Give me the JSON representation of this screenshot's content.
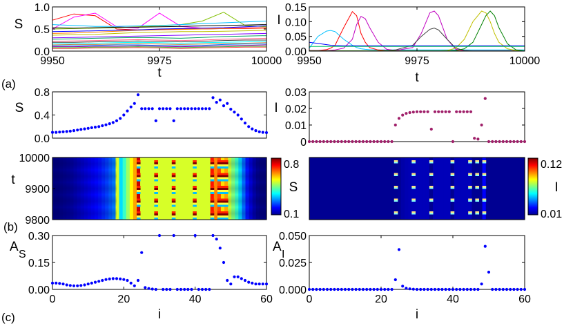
{
  "panel_labels": {
    "a": "(a)",
    "b": "(b)",
    "c": "(c)"
  },
  "chart_data": [
    {
      "id": "a_left",
      "type": "line",
      "xlabel": "t",
      "ylabel": "S",
      "xlim": [
        9950,
        10000
      ],
      "ylim": [
        0,
        1
      ],
      "xticks": [
        9950,
        9975,
        10000
      ],
      "yticks": [
        0,
        0.5,
        1
      ],
      "ytick_labels": [
        "0.0",
        "0.5",
        "1.0"
      ],
      "x": [
        9950,
        9955,
        9960,
        9965,
        9970,
        9975,
        9980,
        9985,
        9990,
        9995,
        10000
      ],
      "series": [
        {
          "color": "#ff0000",
          "values": [
            0.7,
            0.84,
            0.8,
            0.5,
            0.48,
            0.49,
            0.5,
            0.5,
            0.51,
            0.51,
            0.52
          ]
        },
        {
          "color": "#ff00ff",
          "values": [
            0.5,
            0.77,
            0.86,
            0.55,
            0.52,
            0.86,
            0.56,
            0.52,
            0.52,
            0.53,
            0.53
          ]
        },
        {
          "color": "#80c000",
          "values": [
            0.5,
            0.51,
            0.52,
            0.53,
            0.55,
            0.57,
            0.6,
            0.68,
            0.88,
            0.58,
            0.55
          ]
        },
        {
          "color": "#00c0ff",
          "values": [
            0.6,
            0.58,
            0.56,
            0.56,
            0.57,
            0.58,
            0.6,
            0.62,
            0.64,
            0.66,
            0.68
          ]
        },
        {
          "color": "#000000",
          "values": [
            0.53,
            0.52,
            0.53,
            0.54,
            0.54,
            0.55,
            0.56,
            0.57,
            0.58,
            0.59,
            0.6
          ]
        },
        {
          "color": "#ff8000",
          "values": [
            0.4,
            0.41,
            0.43,
            0.45,
            0.47,
            0.48,
            0.49,
            0.5,
            0.51,
            0.52,
            0.53
          ]
        },
        {
          "color": "#0000ff",
          "values": [
            0.44,
            0.45,
            0.46,
            0.47,
            0.48,
            0.5,
            0.51,
            0.52,
            0.53,
            0.55,
            0.57
          ]
        },
        {
          "color": "#c0c000",
          "values": [
            0.36,
            0.37,
            0.38,
            0.4,
            0.42,
            0.43,
            0.44,
            0.44,
            0.45,
            0.46,
            0.47
          ]
        },
        {
          "color": "#8000ff",
          "values": [
            0.3,
            0.31,
            0.32,
            0.33,
            0.34,
            0.35,
            0.36,
            0.37,
            0.38,
            0.39,
            0.4
          ]
        },
        {
          "color": "#00a060",
          "values": [
            0.27,
            0.28,
            0.29,
            0.3,
            0.31,
            0.3,
            0.29,
            0.31,
            0.33,
            0.34,
            0.35
          ]
        },
        {
          "color": "#ff6080",
          "values": [
            0.22,
            0.23,
            0.24,
            0.25,
            0.26,
            0.25,
            0.24,
            0.25,
            0.27,
            0.28,
            0.29
          ]
        },
        {
          "color": "#404040",
          "values": [
            0.2,
            0.2,
            0.21,
            0.22,
            0.23,
            0.22,
            0.21,
            0.22,
            0.24,
            0.25,
            0.25
          ]
        },
        {
          "color": "#00ffff",
          "values": [
            0.17,
            0.17,
            0.18,
            0.19,
            0.2,
            0.19,
            0.18,
            0.19,
            0.2,
            0.21,
            0.22
          ]
        },
        {
          "color": "#c08040",
          "values": [
            0.14,
            0.15,
            0.15,
            0.16,
            0.17,
            0.16,
            0.15,
            0.16,
            0.17,
            0.18,
            0.19
          ]
        },
        {
          "color": "#0080ff",
          "values": [
            0.12,
            0.12,
            0.13,
            0.14,
            0.14,
            0.13,
            0.12,
            0.13,
            0.15,
            0.16,
            0.16
          ]
        },
        {
          "color": "#a000a0",
          "values": [
            0.1,
            0.1,
            0.11,
            0.11,
            0.12,
            0.11,
            0.1,
            0.11,
            0.12,
            0.13,
            0.14
          ]
        },
        {
          "color": "#40c040",
          "values": [
            0.08,
            0.08,
            0.09,
            0.09,
            0.1,
            0.09,
            0.08,
            0.09,
            0.1,
            0.11,
            0.11
          ]
        },
        {
          "color": "#ff4040",
          "values": [
            0.06,
            0.06,
            0.07,
            0.07,
            0.08,
            0.07,
            0.06,
            0.07,
            0.08,
            0.09,
            0.09
          ]
        }
      ]
    },
    {
      "id": "a_right",
      "type": "line",
      "xlabel": "t",
      "ylabel": "I",
      "xlim": [
        9950,
        10000
      ],
      "ylim": [
        0,
        0.15
      ],
      "xticks": [
        9950,
        9975,
        10000
      ],
      "yticks": [
        0,
        0.05,
        0.1,
        0.15
      ],
      "ytick_labels": [
        "0.00",
        "0.05",
        "0.10",
        "0.15"
      ],
      "x": [
        9950,
        9952,
        9954,
        9955,
        9956,
        9958,
        9960,
        9961,
        9962,
        9963,
        9964,
        9966,
        9968,
        9970,
        9974,
        9976,
        9978,
        9979,
        9980,
        9982,
        9984,
        9986,
        9988,
        9990,
        9991,
        9992,
        9993,
        9994,
        9996,
        9998,
        10000
      ],
      "series": [
        {
          "color": "#00c0ff",
          "values": [
            0.01,
            0.05,
            0.068,
            0.07,
            0.066,
            0.04,
            0.02,
            0.012,
            0.008,
            0.006,
            0.005,
            0.004,
            0.004,
            0.004,
            0.004,
            0.004,
            0.004,
            0.004,
            0.004,
            0.004,
            0.004,
            0.004,
            0.004,
            0.004,
            0.004,
            0.004,
            0.004,
            0.004,
            0.004,
            0.004,
            0.004
          ]
        },
        {
          "color": "#ff0000",
          "values": [
            0.002,
            0.002,
            0.005,
            0.01,
            0.02,
            0.08,
            0.134,
            0.12,
            0.06,
            0.03,
            0.012,
            0.004,
            0.002,
            0.001,
            0.001,
            0.001,
            0.001,
            0.001,
            0.001,
            0.001,
            0.001,
            0.001,
            0.001,
            0.001,
            0.001,
            0.001,
            0.001,
            0.001,
            0.001,
            0.001,
            0.001
          ]
        },
        {
          "color": "#c000c0",
          "values": [
            0.002,
            0.002,
            0.002,
            0.003,
            0.004,
            0.01,
            0.04,
            0.09,
            0.118,
            0.11,
            0.08,
            0.03,
            0.006,
            0.002,
            0.012,
            0.06,
            0.13,
            0.136,
            0.12,
            0.04,
            0.006,
            0.002,
            0.001,
            0.001,
            0.001,
            0.001,
            0.001,
            0.001,
            0.001,
            0.001,
            0.001
          ]
        },
        {
          "color": "#404040",
          "values": [
            0.001,
            0.001,
            0.001,
            0.001,
            0.001,
            0.001,
            0.001,
            0.001,
            0.001,
            0.001,
            0.001,
            0.001,
            0.002,
            0.004,
            0.02,
            0.05,
            0.074,
            0.078,
            0.072,
            0.04,
            0.01,
            0.002,
            0.001,
            0.001,
            0.001,
            0.001,
            0.001,
            0.001,
            0.001,
            0.001,
            0.001
          ]
        },
        {
          "color": "#c0c000",
          "values": [
            0.001,
            0.001,
            0.001,
            0.001,
            0.001,
            0.001,
            0.001,
            0.001,
            0.001,
            0.001,
            0.001,
            0.001,
            0.001,
            0.001,
            0.001,
            0.001,
            0.001,
            0.001,
            0.001,
            0.002,
            0.01,
            0.04,
            0.1,
            0.136,
            0.13,
            0.1,
            0.06,
            0.03,
            0.008,
            0.002,
            0.001
          ]
        },
        {
          "color": "#008000",
          "values": [
            0.001,
            0.001,
            0.001,
            0.001,
            0.001,
            0.001,
            0.001,
            0.001,
            0.001,
            0.001,
            0.001,
            0.001,
            0.001,
            0.001,
            0.001,
            0.001,
            0.001,
            0.001,
            0.001,
            0.001,
            0.002,
            0.008,
            0.03,
            0.09,
            0.12,
            0.136,
            0.12,
            0.08,
            0.025,
            0.004,
            0.001
          ]
        },
        {
          "color": "#0000ff",
          "values": [
            0.03,
            0.026,
            0.022,
            0.02,
            0.019,
            0.018,
            0.018,
            0.018,
            0.018,
            0.018,
            0.018,
            0.018,
            0.018,
            0.018,
            0.018,
            0.018,
            0.018,
            0.018,
            0.018,
            0.018,
            0.018,
            0.018,
            0.018,
            0.018,
            0.018,
            0.018,
            0.018,
            0.018,
            0.018,
            0.018,
            0.018
          ]
        },
        {
          "color": "#00c060",
          "values": [
            0.016,
            0.016,
            0.016,
            0.016,
            0.016,
            0.016,
            0.016,
            0.016,
            0.016,
            0.016,
            0.016,
            0.016,
            0.016,
            0.016,
            0.016,
            0.016,
            0.016,
            0.016,
            0.016,
            0.016,
            0.016,
            0.016,
            0.016,
            0.016,
            0.016,
            0.016,
            0.016,
            0.016,
            0.016,
            0.016,
            0.016
          ]
        }
      ]
    },
    {
      "id": "b_left_profile",
      "type": "scatter",
      "ylabel": "S",
      "xlim": [
        0,
        60
      ],
      "ylim": [
        0,
        0.8
      ],
      "yticks": [
        0,
        0.4,
        0.8
      ],
      "ytick_labels": [
        "0.0",
        "0.4",
        "0.8"
      ],
      "marker_color": "#0000ff",
      "values": [
        0.1,
        0.1,
        0.105,
        0.11,
        0.115,
        0.12,
        0.13,
        0.14,
        0.15,
        0.16,
        0.17,
        0.18,
        0.19,
        0.2,
        0.215,
        0.23,
        0.25,
        0.27,
        0.3,
        0.34,
        0.4,
        0.47,
        0.54,
        0.6,
        0.75,
        0.51,
        0.51,
        0.51,
        0.51,
        0.3,
        0.51,
        0.51,
        0.51,
        0.51,
        0.3,
        0.51,
        0.51,
        0.51,
        0.51,
        0.51,
        0.51,
        0.51,
        0.51,
        0.51,
        0.51,
        0.7,
        0.62,
        0.66,
        0.56,
        0.6,
        0.5,
        0.45,
        0.4,
        0.33,
        0.26,
        0.2,
        0.16,
        0.13,
        0.11,
        0.1,
        0.095
      ]
    },
    {
      "id": "b_right_profile",
      "type": "scatter",
      "ylabel": "I",
      "xlim": [
        0,
        60
      ],
      "ylim": [
        0,
        0.03
      ],
      "yticks": [
        0,
        0.01,
        0.02,
        0.03
      ],
      "ytick_labels": [
        "0",
        "0.01",
        "0.02",
        "0.03"
      ],
      "marker_color": "#a0206a",
      "values": [
        0,
        0,
        0,
        0,
        0,
        0,
        0,
        0,
        0,
        0,
        0,
        0,
        0,
        0,
        0,
        0,
        0,
        0,
        0,
        0,
        0,
        0,
        0,
        0,
        0.01,
        0.014,
        0.016,
        0.017,
        0.0175,
        0.0178,
        0.018,
        0.018,
        0.018,
        0.018,
        0.0075,
        0.018,
        0.018,
        0.018,
        0.018,
        0.018,
        0.0,
        0.018,
        0.018,
        0.018,
        0.018,
        0.018,
        0.002,
        0.0015,
        0.01,
        0.026,
        0.0,
        0,
        0,
        0,
        0,
        0,
        0,
        0,
        0,
        0,
        0
      ]
    },
    {
      "id": "b_left_heatmap",
      "type": "heatmap",
      "ylabel": "t",
      "ylim": [
        9800,
        10000
      ],
      "yticks": [
        9800,
        9900,
        10000
      ],
      "colorbar_label": "S",
      "colorbar_ticks": [
        "0.8",
        "0.1"
      ]
    },
    {
      "id": "b_right_heatmap",
      "type": "heatmap",
      "colorbar_label": "I",
      "colorbar_ticks": [
        "0.12",
        "0.01"
      ]
    },
    {
      "id": "c_left",
      "type": "scatter",
      "xlabel": "i",
      "ylabel": "A",
      "ylabel_sub": "S",
      "xlim": [
        0,
        60
      ],
      "ylim": [
        0,
        0.3
      ],
      "xticks": [
        0,
        20,
        40,
        60
      ],
      "yticks": [
        0,
        0.15,
        0.3
      ],
      "ytick_labels": [
        "0.00",
        "0.15",
        "0.30"
      ],
      "marker_color": "#0000ff",
      "values": [
        0.035,
        0.035,
        0.033,
        0.03,
        0.025,
        0.022,
        0.02,
        0.02,
        0.022,
        0.025,
        0.03,
        0.035,
        0.04,
        0.045,
        0.05,
        0.055,
        0.058,
        0.06,
        0.06,
        0.058,
        0.055,
        0.05,
        0.035,
        0.02,
        0.05,
        0.205,
        0.01,
        0.005,
        0.002,
        0.0,
        0.3,
        0.0,
        0.0,
        0.0,
        0.3,
        0.0,
        0.0,
        0.0,
        0.0,
        0.0,
        0.3,
        0.0,
        0.0,
        0.0,
        0.0,
        0.3,
        0.28,
        0.23,
        0.15,
        0.05,
        0.03,
        0.07,
        0.07,
        0.06,
        0.05,
        0.04,
        0.035,
        0.03,
        0.03,
        0.03,
        0.03
      ]
    },
    {
      "id": "c_right",
      "type": "scatter",
      "xlabel": "i",
      "ylabel": "A",
      "ylabel_sub": "I",
      "xlim": [
        0,
        60
      ],
      "ylim": [
        0,
        0.05
      ],
      "xticks": [
        0,
        20,
        40,
        60
      ],
      "yticks": [
        0,
        0.025,
        0.05
      ],
      "ytick_labels": [
        "0.000",
        "0.025",
        "0.050"
      ],
      "marker_color": "#0000ff",
      "values": [
        0,
        0,
        0,
        0,
        0,
        0,
        0,
        0,
        0,
        0,
        0,
        0,
        0,
        0,
        0,
        0,
        0,
        0,
        0,
        0,
        0,
        0,
        0,
        0,
        0.009,
        0.037,
        0.003,
        0.001,
        0.0005,
        0.0002,
        0,
        0,
        0,
        0,
        0,
        0,
        0,
        0,
        0,
        0,
        0,
        0,
        0,
        0,
        0,
        0,
        0,
        0,
        0.005,
        0.04,
        0.016,
        0,
        0,
        0,
        0,
        0,
        0,
        0,
        0,
        0,
        0
      ]
    }
  ]
}
